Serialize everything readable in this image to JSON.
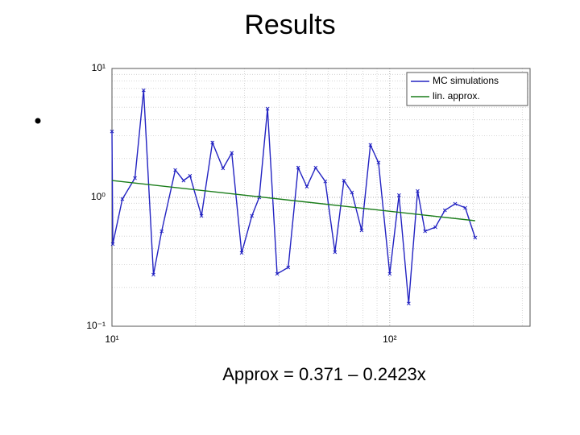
{
  "title": "Results",
  "formula": "Approx = 0.371 – 0.2423x",
  "chart_data": {
    "type": "line",
    "log_x": true,
    "log_y": true,
    "grid": true,
    "legend": "upper right",
    "xlim": [
      10,
      320
    ],
    "ylim": [
      0.1,
      10
    ],
    "xticks": [
      {
        "value": 10,
        "label": "10¹"
      },
      {
        "value": 100,
        "label": "10²"
      }
    ],
    "yticks": [
      {
        "value": 0.1,
        "label": "10⁻¹"
      },
      {
        "value": 1,
        "label": "10⁰"
      },
      {
        "value": 10,
        "label": "10¹"
      }
    ],
    "xminorticks": [
      20,
      30,
      40,
      50,
      60,
      70,
      80,
      90,
      200,
      300
    ],
    "yminorticks": [
      0.2,
      0.3,
      0.4,
      0.5,
      0.6,
      0.7,
      0.8,
      0.9,
      2,
      3,
      4,
      5,
      6,
      7,
      8,
      9
    ],
    "series": [
      {
        "name": "MC simulations",
        "color": "#2323c2",
        "marker": true,
        "x": [
          10,
          10.07,
          10.9,
          12.1,
          13.0,
          14.1,
          15.1,
          16.9,
          18.1,
          19.1,
          21.0,
          23.0,
          25.1,
          27.0,
          29.3,
          31.9,
          33.9,
          36.3,
          39.3,
          43.1,
          46.8,
          50.3,
          54.1,
          58.6,
          63.5,
          68.4,
          73.1,
          79.2,
          85.2,
          91.1,
          100,
          108,
          117,
          126,
          134,
          146,
          158,
          172,
          187,
          203
        ],
        "values": [
          3.25,
          0.434,
          0.97,
          1.41,
          6.78,
          0.251,
          0.546,
          1.63,
          1.35,
          1.47,
          0.718,
          2.66,
          1.68,
          2.21,
          0.371,
          0.718,
          1.0,
          4.87,
          0.255,
          0.286,
          1.7,
          1.21,
          1.7,
          1.33,
          0.376,
          1.35,
          1.09,
          0.554,
          2.55,
          1.86,
          0.255,
          1.04,
          0.15,
          1.12,
          0.546,
          0.587,
          0.794,
          0.891,
          0.83,
          0.487
        ]
      },
      {
        "name": "lin. approx.",
        "color": "#1a7d1a",
        "marker": false,
        "x": [
          10,
          203
        ],
        "values": [
          1.35,
          0.659
        ]
      }
    ]
  }
}
